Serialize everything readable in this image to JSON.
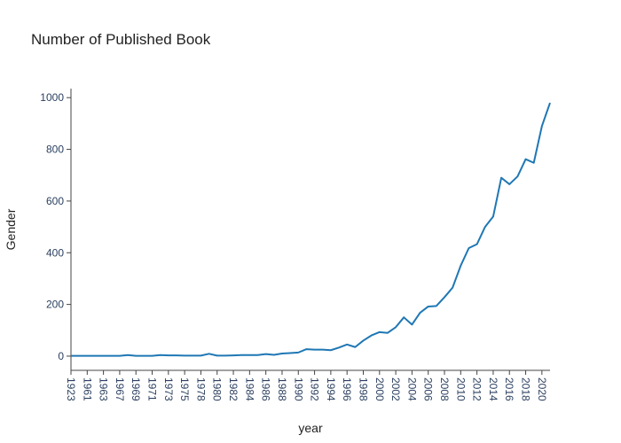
{
  "chart_data": {
    "type": "line",
    "title": "Number of Published Book",
    "x_label": "year",
    "y_label": "Gender",
    "categories": [
      "1923",
      null,
      "1961",
      null,
      "1963",
      null,
      "1967",
      null,
      "1969",
      null,
      "1971",
      null,
      "1973",
      null,
      "1975",
      null,
      "1978",
      null,
      "1980",
      null,
      "1982",
      null,
      "1984",
      null,
      "1986",
      null,
      "1988",
      null,
      "1990",
      null,
      "1992",
      null,
      "1994",
      null,
      "1996",
      null,
      "1998",
      null,
      "2000",
      null,
      "2002",
      null,
      "2004",
      null,
      "2006",
      null,
      "2008",
      null,
      "2010",
      null,
      "2012",
      null,
      "2014",
      null,
      "2016",
      null,
      "2018",
      null,
      "2020",
      null
    ],
    "values": [
      1,
      1,
      1,
      1,
      1,
      1,
      1,
      4,
      1,
      1,
      1,
      4,
      3,
      3,
      2,
      2,
      2,
      9,
      2,
      2,
      3,
      4,
      4,
      4,
      8,
      5,
      10,
      12,
      14,
      27,
      25,
      25,
      23,
      33,
      45,
      35,
      60,
      80,
      93,
      90,
      112,
      150,
      122,
      168,
      192,
      194,
      228,
      265,
      350,
      418,
      433,
      500,
      540,
      690,
      665,
      695,
      762,
      748,
      890,
      980
    ],
    "color": "#1f77b4",
    "ylim": [
      -55,
      1035
    ],
    "yticks": [
      0,
      200,
      400,
      600,
      800,
      1000
    ]
  }
}
